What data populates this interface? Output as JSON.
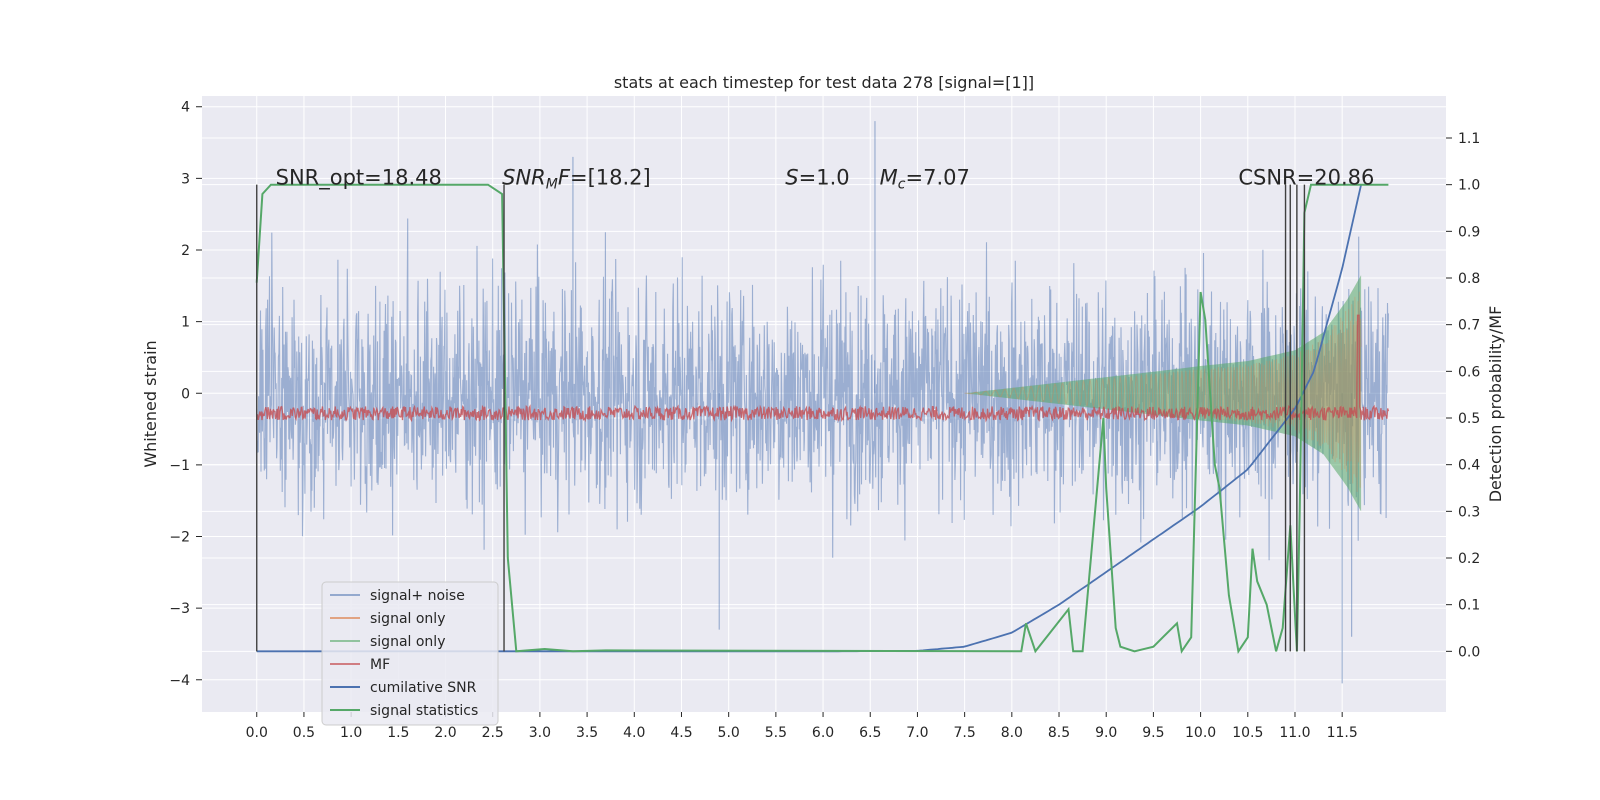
{
  "chart_data": {
    "type": "line",
    "title": "stats at each timestep for test data 278 [signal=[1]]",
    "xlabel": "",
    "ylabel": "Whitened strain",
    "y2label": "Detection probability/MF",
    "xlim": [
      -0.58,
      12.6
    ],
    "ylim": [
      -4.45,
      4.15
    ],
    "y2lim": [
      -0.13,
      1.19
    ],
    "x_ticks": [
      0.0,
      0.5,
      1.0,
      1.5,
      2.0,
      2.5,
      3.0,
      3.5,
      4.0,
      4.5,
      5.0,
      5.5,
      6.0,
      6.5,
      7.0,
      7.5,
      8.0,
      8.5,
      9.0,
      9.5,
      10.0,
      10.5,
      11.0,
      11.5
    ],
    "x_tick_labels": [
      "0.0",
      "0.5",
      "1.0",
      "1.5",
      "2.0",
      "2.5",
      "3.0",
      "3.5",
      "4.0",
      "4.5",
      "5.0",
      "5.5",
      "6.0",
      "6.5",
      "7.0",
      "7.5",
      "8.0",
      "8.5",
      "9.0",
      "9.5",
      "10.0",
      "10.5",
      "11.0",
      "11.5"
    ],
    "y_ticks": [
      -4,
      -3,
      -2,
      -1,
      0,
      1,
      2,
      3,
      4
    ],
    "y_tick_labels": [
      "−4",
      "−3",
      "−2",
      "−1",
      "0",
      "1",
      "2",
      "3",
      "4"
    ],
    "y2_ticks": [
      0.0,
      0.1,
      0.2,
      0.3,
      0.4,
      0.5,
      0.6,
      0.7,
      0.8,
      0.9,
      1.0,
      1.1
    ],
    "y2_tick_labels": [
      "0.0",
      "0.1",
      "0.2",
      "0.3",
      "0.4",
      "0.5",
      "0.6",
      "0.7",
      "0.8",
      "0.9",
      "1.0",
      "1.1"
    ],
    "grid": true,
    "legend_position": "lower-left",
    "annotations": [
      {
        "text": "SNR_opt=18.48",
        "x": 0.2,
        "y2": 1.0
      },
      {
        "text": "SNR_MF=[18.2]",
        "x": 2.6,
        "y2": 1.0
      },
      {
        "text": "S=1.0",
        "x": 5.6,
        "y2": 1.0
      },
      {
        "text": "M_c=7.07",
        "x": 6.6,
        "y2": 1.0
      },
      {
        "text": "CSNR=20.86",
        "x": 10.4,
        "y2": 1.0
      }
    ],
    "vertical_lines": [
      0.0,
      2.62,
      10.9,
      10.95,
      11.02,
      11.1
    ],
    "series": [
      {
        "name": "signal+ noise",
        "color": "#4c72b0",
        "axis": "left",
        "style": "noisy-band",
        "x_range": [
          0.0,
          11.99
        ],
        "typical_amplitude": 1.1,
        "peak_min": -4.05,
        "peak_max": 3.8
      },
      {
        "name": "signal only",
        "color": "#dd8452",
        "axis": "left",
        "style": "chirp",
        "x_range": [
          7.5,
          11.7
        ]
      },
      {
        "name": "signal only",
        "color": "#55a868",
        "axis": "left",
        "style": "chirp-envelope",
        "x": [
          7.5,
          8.5,
          9.5,
          10.0,
          10.5,
          11.0,
          11.3,
          11.55,
          11.7
        ],
        "amplitude": [
          0.0,
          0.15,
          0.3,
          0.38,
          0.45,
          0.6,
          0.85,
          1.3,
          1.65
        ]
      },
      {
        "name": "MF",
        "color": "#c44e52",
        "axis": "right",
        "style": "noisy-line",
        "x_range": [
          0.0,
          11.99
        ],
        "base": 0.51,
        "spike_x": 11.67,
        "spike_value": 0.72
      },
      {
        "name": "cumilative SNR",
        "color": "#4c72b0",
        "axis": "right",
        "x": [
          0.0,
          6.0,
          7.0,
          7.5,
          8.0,
          8.5,
          9.0,
          9.5,
          10.0,
          10.5,
          11.0,
          11.2,
          11.5,
          11.7
        ],
        "values": [
          0.0,
          0.0,
          0.001,
          0.01,
          0.04,
          0.1,
          0.17,
          0.24,
          0.31,
          0.39,
          0.52,
          0.6,
          0.82,
          1.0
        ]
      },
      {
        "name": "signal statistics",
        "color": "#55a868",
        "axis": "right",
        "x": [
          0.0,
          0.06,
          0.15,
          2.45,
          2.6,
          2.66,
          2.75,
          3.05,
          3.35,
          3.7,
          8.1,
          8.15,
          8.25,
          8.6,
          8.65,
          8.75,
          8.97,
          9.0,
          9.1,
          9.15,
          9.3,
          9.5,
          9.6,
          9.75,
          9.8,
          9.9,
          10.0,
          10.05,
          10.15,
          10.2,
          10.3,
          10.4,
          10.5,
          10.55,
          10.6,
          10.7,
          10.8,
          10.87,
          10.95,
          11.02,
          11.05,
          11.1,
          11.17,
          11.25,
          11.99
        ],
        "values": [
          0.79,
          0.98,
          1.0,
          1.0,
          0.98,
          0.2,
          0.0,
          0.005,
          0.0,
          0.002,
          0.0,
          0.06,
          0.0,
          0.09,
          0.0,
          0.0,
          0.5,
          0.35,
          0.05,
          0.01,
          0.0,
          0.01,
          0.03,
          0.06,
          0.0,
          0.03,
          0.77,
          0.71,
          0.4,
          0.35,
          0.12,
          0.0,
          0.03,
          0.22,
          0.15,
          0.1,
          0.0,
          0.05,
          0.27,
          0.0,
          0.3,
          0.94,
          1.0,
          1.0,
          1.0
        ]
      }
    ]
  },
  "legend": {
    "items": [
      {
        "label": "signal+ noise",
        "color": "#4c72b0",
        "alpha": 0.55
      },
      {
        "label": "signal only",
        "color": "#dd8452",
        "alpha": 0.7
      },
      {
        "label": "signal only",
        "color": "#55a868",
        "alpha": 0.6
      },
      {
        "label": "MF",
        "color": "#c44e52",
        "alpha": 0.7
      },
      {
        "label": "cumilative SNR",
        "color": "#4c72b0",
        "alpha": 1.0
      },
      {
        "label": "signal statistics",
        "color": "#55a868",
        "alpha": 1.0
      }
    ]
  },
  "colors": {
    "plot_background": "#eaeaf2",
    "grid": "#ffffff",
    "text": "#262626",
    "vertical_line": "#404040"
  }
}
